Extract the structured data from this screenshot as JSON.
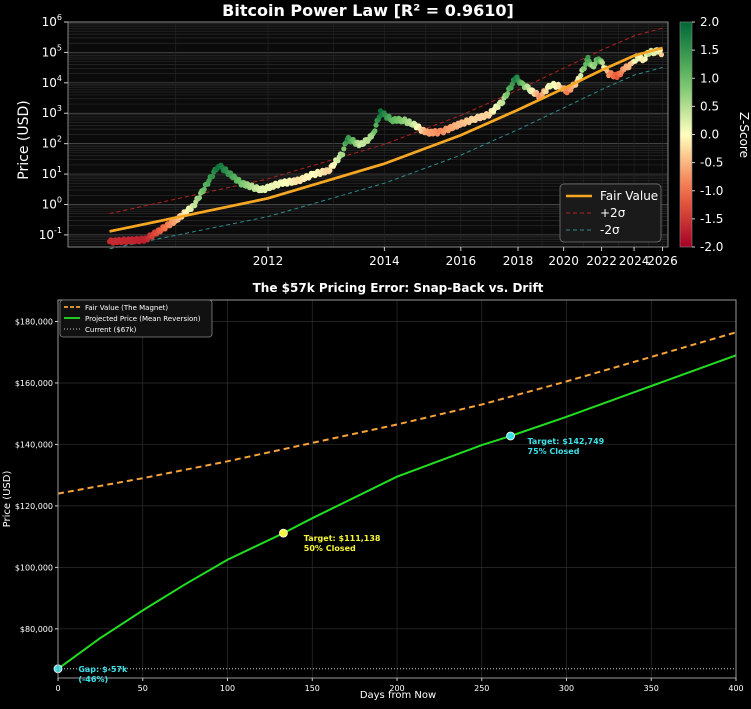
{
  "chart_data": [
    {
      "type": "scatter",
      "title": "Bitcoin Power Law [R² = 0.9610]",
      "xlabel": "",
      "ylabel": "Price (USD)",
      "x_scale": "log-time",
      "y_scale": "log",
      "ylim": [
        0.04,
        1000000
      ],
      "x_ticks": [
        "2012",
        "2014",
        "2016",
        "2018",
        "2020",
        "2022",
        "2024",
        "2026"
      ],
      "y_ticks": [
        "10^-1",
        "10^0",
        "10^1",
        "10^2",
        "10^3",
        "10^4",
        "10^5",
        "10^6"
      ],
      "grid": true,
      "legend_position": "lower-right",
      "legend": [
        "Fair Value",
        "+2σ",
        "-2σ"
      ],
      "colorbar": {
        "label": "Z-Score",
        "range": [
          -2.0,
          2.0
        ],
        "ticks": [
          "2.0",
          "1.5",
          "1.0",
          "0.5",
          "0.0",
          "-0.5",
          "-1.0",
          "-1.5",
          "-2.0"
        ],
        "colormap": "red-yellow-green"
      },
      "series": [
        {
          "name": "Fair Value",
          "color": "#f5a623",
          "style": "solid",
          "points": [
            [
              "2010-07-01",
              0.13
            ],
            [
              "2012-01-01",
              1.6
            ],
            [
              "2014-01-01",
              22
            ],
            [
              "2016-01-01",
              190
            ],
            [
              "2018-01-01",
              1300
            ],
            [
              "2020-01-01",
              6500
            ],
            [
              "2022-01-01",
              26000
            ],
            [
              "2024-01-01",
              78000
            ],
            [
              "2026-01-01",
              140000
            ]
          ]
        },
        {
          "name": "+2σ",
          "color": "#b22222",
          "style": "dashed",
          "points": [
            [
              "2010-07-01",
              0.5
            ],
            [
              "2012-01-01",
              7
            ],
            [
              "2014-01-01",
              95
            ],
            [
              "2016-01-01",
              850
            ],
            [
              "2018-01-01",
              5800
            ],
            [
              "2020-01-01",
              30000
            ],
            [
              "2022-01-01",
              120000
            ],
            [
              "2024-01-01",
              350000
            ],
            [
              "2026-01-01",
              630000
            ]
          ]
        },
        {
          "name": "-2σ",
          "color": "#2e8b8b",
          "style": "dashed",
          "points": [
            [
              "2010-07-01",
              0.035
            ],
            [
              "2012-01-01",
              0.4
            ],
            [
              "2014-01-01",
              5
            ],
            [
              "2016-01-01",
              42
            ],
            [
              "2018-01-01",
              290
            ],
            [
              "2020-01-01",
              1500
            ],
            [
              "2022-01-01",
              6000
            ],
            [
              "2024-01-01",
              18000
            ],
            [
              "2026-01-01",
              32000
            ]
          ]
        },
        {
          "name": "",
          "color": "z-score",
          "style": "scatter",
          "points": [
            [
              "2010-07-01",
              0.06,
              -1.6
            ],
            [
              "2010-10-01",
              0.07,
              -1.7
            ],
            [
              "2011-01-01",
              0.3,
              -0.6
            ],
            [
              "2011-03-01",
              0.9,
              0.3
            ],
            [
              "2011-06-01",
              20,
              1.9
            ],
            [
              "2011-09-01",
              5,
              0.9
            ],
            [
              "2011-12-01",
              3,
              0.2
            ],
            [
              "2012-03-01",
              5,
              0.1
            ],
            [
              "2012-06-01",
              6,
              -0.2
            ],
            [
              "2012-09-01",
              10,
              0.0
            ],
            [
              "2012-12-01",
              13,
              -0.3
            ],
            [
              "2013-03-01",
              50,
              0.6
            ],
            [
              "2013-04-01",
              150,
              1.6
            ],
            [
              "2013-07-01",
              90,
              0.3
            ],
            [
              "2013-10-01",
              180,
              0.6
            ],
            [
              "2013-12-01",
              1100,
              1.9
            ],
            [
              "2014-03-01",
              600,
              1.1
            ],
            [
              "2014-06-01",
              600,
              0.8
            ],
            [
              "2014-09-01",
              450,
              0.4
            ],
            [
              "2015-01-01",
              230,
              -0.6
            ],
            [
              "2015-06-01",
              240,
              -0.8
            ],
            [
              "2015-12-01",
              420,
              -0.5
            ],
            [
              "2016-06-01",
              650,
              -0.3
            ],
            [
              "2016-12-01",
              900,
              -0.3
            ],
            [
              "2017-06-01",
              2500,
              0.4
            ],
            [
              "2017-12-01",
              15000,
              1.8
            ],
            [
              "2018-03-01",
              9000,
              1.0
            ],
            [
              "2018-06-01",
              6500,
              0.4
            ],
            [
              "2018-12-01",
              3500,
              -0.8
            ],
            [
              "2019-06-01",
              9000,
              0.2
            ],
            [
              "2019-12-01",
              7200,
              -0.3
            ],
            [
              "2020-03-01",
              5000,
              -0.9
            ],
            [
              "2020-09-01",
              10500,
              -0.3
            ],
            [
              "2021-04-01",
              60000,
              1.4
            ],
            [
              "2021-07-01",
              33000,
              0.5
            ],
            [
              "2021-11-01",
              65000,
              1.2
            ],
            [
              "2022-06-01",
              20000,
              -0.7
            ],
            [
              "2022-12-01",
              16500,
              -1.2
            ],
            [
              "2023-06-01",
              30000,
              -0.6
            ],
            [
              "2023-12-01",
              42000,
              -0.4
            ],
            [
              "2024-03-01",
              70000,
              0.3
            ],
            [
              "2024-09-01",
              60000,
              -0.2
            ],
            [
              "2025-01-01",
              100000,
              0.4
            ],
            [
              "2025-06-01",
              105000,
              0.2
            ],
            [
              "2025-10-01",
              120000,
              0.2
            ],
            [
              "2026-01-01",
              75000,
              -0.6
            ]
          ]
        }
      ]
    },
    {
      "type": "line",
      "title": "The $57k Pricing Error: Snap-Back vs. Drift",
      "xlabel": "Days from Now",
      "ylabel": "Price (USD)",
      "xlim": [
        0,
        400
      ],
      "ylim": [
        64000,
        187000
      ],
      "x_ticks": [
        0,
        50,
        100,
        150,
        200,
        250,
        300,
        350,
        400
      ],
      "y_ticks": [
        "$80,000",
        "$100,000",
        "$120,000",
        "$140,000",
        "$160,000",
        "$180,000"
      ],
      "grid": true,
      "legend_position": "top-left",
      "series": [
        {
          "name": "Fair Value (The Magnet)",
          "color": "#f5a33a",
          "style": "dashed",
          "x": [
            0,
            50,
            100,
            150,
            200,
            250,
            300,
            350,
            400
          ],
          "values": [
            124000,
            129000,
            134500,
            140500,
            146500,
            153000,
            160500,
            168500,
            176500
          ]
        },
        {
          "name": "Projected Price (Mean Reversion)",
          "color": "#22dd22",
          "style": "solid",
          "x": [
            0,
            25,
            50,
            75,
            100,
            133,
            150,
            200,
            250,
            267,
            300,
            350,
            400
          ],
          "values": [
            67000,
            77000,
            86000,
            94500,
            102500,
            111138,
            116000,
            129500,
            139800,
            142749,
            149000,
            159000,
            169000
          ]
        },
        {
          "name": "Current ($67k)",
          "color": "#cccccc",
          "style": "dotted",
          "x": [
            0,
            400
          ],
          "values": [
            67000,
            67000
          ]
        }
      ],
      "markers": [
        {
          "x": 0,
          "y": 67000,
          "color": "#3ee0e8"
        },
        {
          "x": 133,
          "y": 111138,
          "color": "#f5f53a"
        },
        {
          "x": 267,
          "y": 142749,
          "color": "#3ee0e8"
        }
      ],
      "annotations": [
        {
          "x": 12,
          "y": 66000,
          "lines": [
            "Gap: $-57k",
            "(-46%)"
          ],
          "color": "#3ee0e8"
        },
        {
          "x": 145,
          "y": 108500,
          "lines": [
            "Target: $111,138",
            "50% Closed"
          ],
          "color": "#f5f53a"
        },
        {
          "x": 277,
          "y": 140200,
          "lines": [
            "Target: $142,749",
            "75% Closed"
          ],
          "color": "#3ee0e8"
        }
      ]
    }
  ]
}
